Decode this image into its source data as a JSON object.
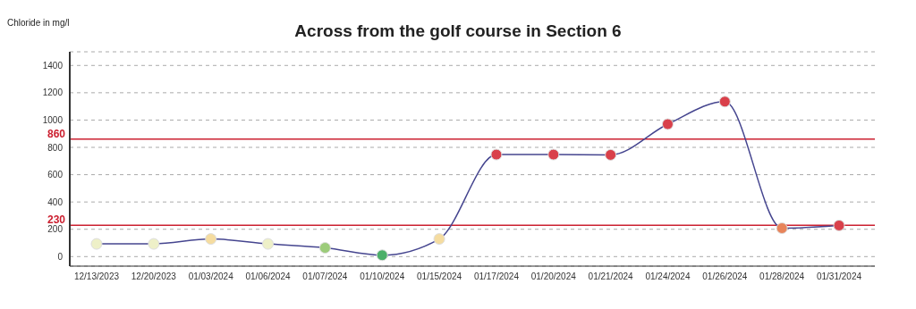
{
  "chart_data": {
    "type": "line",
    "title": "Across from the golf course in Section 6",
    "ylabel": "Chloride in mg/l",
    "categories": [
      "12/13/2023",
      "12/20/2023",
      "01/03/2024",
      "01/06/2024",
      "01/07/2024",
      "01/10/2024",
      "01/15/2024",
      "01/17/2024",
      "01/20/2024",
      "01/21/2024",
      "01/24/2024",
      "01/26/2024",
      "01/28/2024",
      "01/31/2024"
    ],
    "series": [
      {
        "color": "#45458f",
        "values": [
          93,
          93,
          129,
          93,
          64,
          10,
          129,
          747,
          747,
          745,
          970,
          1135,
          208,
          228
        ],
        "colors": [
          "#eef0c8",
          "#eef0c8",
          "#f5dca0",
          "#eef0c8",
          "#9ccc7a",
          "#4caf6a",
          "#f5dca0",
          "#d9404a",
          "#d9404a",
          "#d9404a",
          "#d9404a",
          "#d9404a",
          "#e8845a",
          "#d9404a"
        ]
      }
    ],
    "ylim": [
      -70,
      1500
    ],
    "yticks": [
      0,
      200,
      400,
      600,
      800,
      1000,
      1200,
      1400
    ],
    "grid": "y",
    "marker": "circle",
    "line_style": "solid",
    "ref_lines": [
      {
        "axis": "y",
        "value": 860,
        "label": "860",
        "color": "#cc2030"
      },
      {
        "axis": "y",
        "value": 230,
        "label": "230",
        "color": "#cc2030"
      }
    ]
  }
}
